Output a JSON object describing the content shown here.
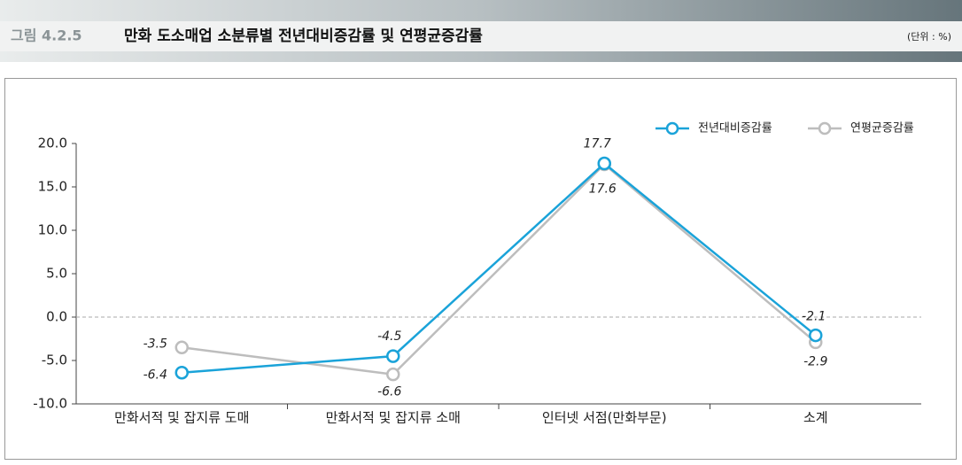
{
  "chart_data": {
    "type": "line",
    "figure_label": "그림 4.2.5",
    "title": "만화 도소매업 소분류별 전년대비증감률 및 연평균증감률",
    "unit": "(단위 : %)",
    "categories": [
      "만화서적 및 잡지류 도매",
      "만화서적 및 잡지류 소매",
      "인터넷 서점(만화부문)",
      "소계"
    ],
    "series": [
      {
        "name": "전년대비증감률",
        "color": "#1aa3d9",
        "values": [
          -6.4,
          -4.5,
          17.7,
          -2.1
        ]
      },
      {
        "name": "연평균증감률",
        "color": "#bdbdbd",
        "values": [
          -3.5,
          -6.6,
          17.6,
          -2.9
        ]
      }
    ],
    "ylim": [
      -10,
      20
    ],
    "yticks": [
      {
        "value": -10,
        "label": "-10.0"
      },
      {
        "value": -5,
        "label": "-5.0"
      },
      {
        "value": 0,
        "label": "0.0"
      },
      {
        "value": 5,
        "label": "5.0"
      },
      {
        "value": 10,
        "label": "10.0"
      },
      {
        "value": 15,
        "label": "15.0"
      },
      {
        "value": 20,
        "label": "20.0"
      }
    ],
    "legend": "top-right"
  }
}
